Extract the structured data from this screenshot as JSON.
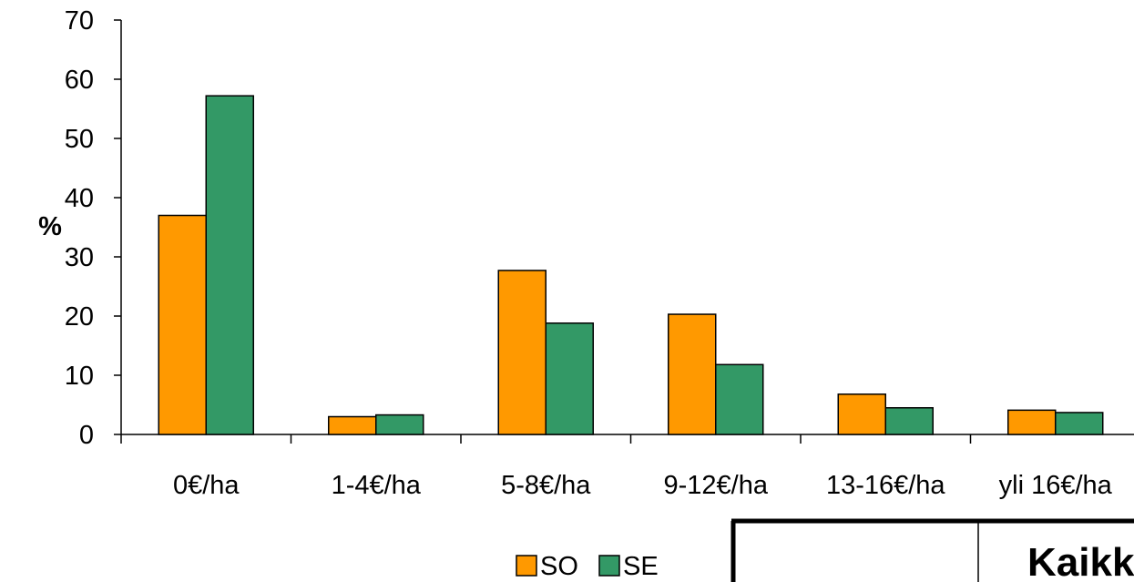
{
  "chart_data": {
    "type": "bar",
    "ylabel": "%",
    "ylim": [
      0,
      70
    ],
    "yticks": [
      "0",
      "10",
      "20",
      "30",
      "40",
      "50",
      "60",
      "70"
    ],
    "categories": [
      "0€/ha",
      "1-4€/ha",
      "5-8€/ha",
      "9-12€/ha",
      "13-16€/ha",
      "yli 16€/ha"
    ],
    "series": [
      {
        "name": "SO",
        "values": [
          37,
          3,
          27.7,
          20.3,
          6.8,
          4.1
        ]
      },
      {
        "name": "SE",
        "values": [
          57.2,
          3.3,
          18.8,
          11.8,
          4.5,
          3.7
        ]
      }
    ],
    "colors": {
      "SO": "#FF9900",
      "SE": "#339966"
    },
    "grid": false,
    "legend_position": "bottom"
  },
  "table_fragment": {
    "text": "Kaikk"
  }
}
